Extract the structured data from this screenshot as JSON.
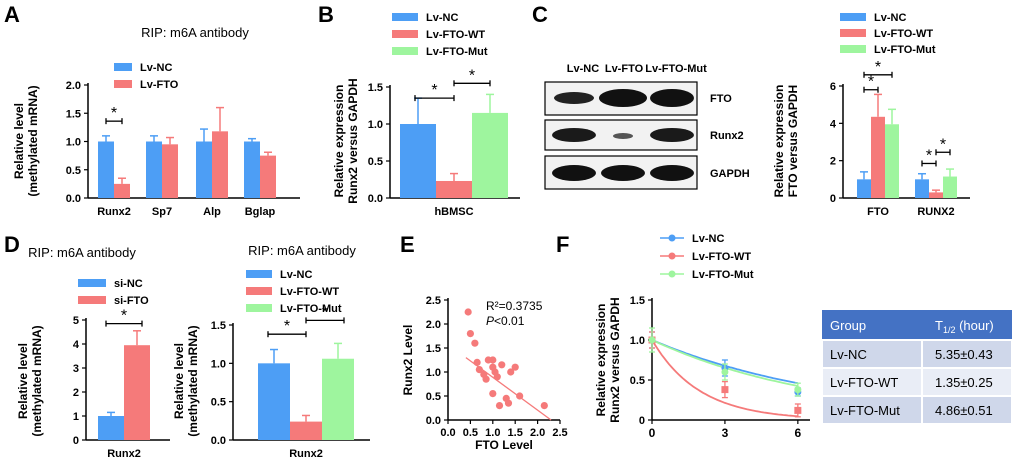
{
  "colors": {
    "blue": "#4d9ef5",
    "red": "#f57a7a",
    "green": "#9ef59e",
    "axis": "#000000",
    "band": "#1a1a1a",
    "table_header": "#4472c4",
    "table_row1": "#cfd7ea",
    "table_row2": "#e9edf6"
  },
  "panel_letters": {
    "a": "A",
    "b": "B",
    "c": "C",
    "d": "D",
    "e": "E",
    "f": "F"
  },
  "chart_data": [
    {
      "id": "A",
      "type": "bar",
      "title": "RIP: m6A antibody",
      "ylabel": "Relative level\n(methylated mRNA)",
      "ylim": [
        0,
        2.0
      ],
      "yticks": [
        0,
        0.5,
        1.0,
        1.5,
        2.0
      ],
      "ytick_labels": [
        "0.0",
        "0.5",
        "1.0",
        "1.5",
        "2.0"
      ],
      "categories": [
        "Runx2",
        "Sp7",
        "Alp",
        "Bglap"
      ],
      "series": [
        {
          "name": "Lv-NC",
          "color": "blue",
          "values": [
            1.0,
            1.0,
            1.0,
            1.0
          ],
          "errors": [
            0.1,
            0.1,
            0.22,
            0.05
          ]
        },
        {
          "name": "Lv-FTO",
          "color": "red",
          "values": [
            0.25,
            0.95,
            1.18,
            0.75
          ],
          "errors": [
            0.1,
            0.12,
            0.42,
            0.06
          ]
        }
      ],
      "annotations": [
        {
          "label": "*",
          "cat": 0
        }
      ]
    },
    {
      "id": "B",
      "type": "bar",
      "title": "",
      "ylabel": "Relative expression\nRunx2 versus GAPDH",
      "ylim": [
        0,
        1.5
      ],
      "yticks": [
        0,
        0.5,
        1.0,
        1.5
      ],
      "ytick_labels": [
        "0.0",
        "0.5",
        "1.0",
        "1.5"
      ],
      "categories": [
        "hBMSC"
      ],
      "series": [
        {
          "name": "Lv-NC",
          "color": "blue",
          "values": [
            1.0
          ],
          "errors": [
            0.35
          ]
        },
        {
          "name": "Lv-FTO-WT",
          "color": "red",
          "values": [
            0.23
          ],
          "errors": [
            0.1
          ]
        },
        {
          "name": "Lv-FTO-Mut",
          "color": "green",
          "values": [
            1.15
          ],
          "errors": [
            0.25
          ]
        }
      ],
      "annotations": [
        {
          "label": "*"
        },
        {
          "label": "*"
        }
      ]
    },
    {
      "id": "C",
      "type": "bar",
      "title": "",
      "ylabel": "Relative expression\nFTO versus GAPDH",
      "ylim": [
        0,
        6
      ],
      "yticks": [
        0,
        2,
        4,
        6
      ],
      "ytick_labels": [
        "0",
        "2",
        "4",
        "6"
      ],
      "categories": [
        "FTO",
        "RUNX2"
      ],
      "series": [
        {
          "name": "Lv-NC",
          "color": "blue",
          "values": [
            1.0,
            1.0
          ],
          "errors": [
            0.4,
            0.3
          ]
        },
        {
          "name": "Lv-FTO-WT",
          "color": "red",
          "values": [
            4.35,
            0.3
          ],
          "errors": [
            1.2,
            0.12
          ]
        },
        {
          "name": "Lv-FTO-Mut",
          "color": "green",
          "values": [
            3.95,
            1.15
          ],
          "errors": [
            0.8,
            0.4
          ]
        }
      ],
      "annotations": [
        {
          "label": "*"
        },
        {
          "label": "*"
        },
        {
          "label": "*"
        },
        {
          "label": "*"
        }
      ]
    },
    {
      "id": "D1",
      "type": "bar",
      "title": "RIP: m6A antibody",
      "ylabel": "Relative level\n(methylated mRNA)",
      "ylim": [
        0,
        5
      ],
      "yticks": [
        0,
        1,
        2,
        3,
        4,
        5
      ],
      "ytick_labels": [
        "0",
        "1",
        "2",
        "3",
        "4",
        "5"
      ],
      "categories": [
        "Runx2"
      ],
      "series": [
        {
          "name": "si-NC",
          "color": "blue",
          "values": [
            1.0
          ],
          "errors": [
            0.15
          ]
        },
        {
          "name": "si-FTO",
          "color": "red",
          "values": [
            3.95
          ],
          "errors": [
            0.6
          ]
        }
      ],
      "annotations": [
        {
          "label": "*"
        }
      ]
    },
    {
      "id": "D2",
      "type": "bar",
      "title": "RIP: m6A antibody",
      "ylabel": "Relative level\n(methylated mRNA)",
      "ylim": [
        0,
        1.5
      ],
      "yticks": [
        0,
        0.5,
        1.0,
        1.5
      ],
      "ytick_labels": [
        "0.0",
        "0.5",
        "1.0",
        "1.5"
      ],
      "categories": [
        "Runx2"
      ],
      "series": [
        {
          "name": "Lv-NC",
          "color": "blue",
          "values": [
            1.0
          ],
          "errors": [
            0.18
          ]
        },
        {
          "name": "Lv-FTO-WT",
          "color": "red",
          "values": [
            0.24
          ],
          "errors": [
            0.08
          ]
        },
        {
          "name": "Lv-FTO-Mut",
          "color": "green",
          "values": [
            1.06
          ],
          "errors": [
            0.2
          ]
        }
      ],
      "annotations": [
        {
          "label": "*"
        },
        {
          "label": "*"
        }
      ]
    },
    {
      "id": "E",
      "type": "scatter",
      "title": "",
      "xlabel": "FTO Level",
      "ylabel": "Runx2 Level",
      "xlim": [
        0,
        2.5
      ],
      "ylim": [
        0,
        2.5
      ],
      "xticks": [
        0,
        0.5,
        1.0,
        1.5,
        2.0,
        2.5
      ],
      "xtick_labels": [
        "0.0",
        "0.5",
        "1.0",
        "1.5",
        "2.0",
        "2.5"
      ],
      "yticks": [
        0,
        0.5,
        1.0,
        1.5,
        2.0,
        2.5
      ],
      "ytick_labels": [
        "0.0",
        "0.5",
        "1.0",
        "1.5",
        "2.0",
        "2.5"
      ],
      "points": [
        [
          0.45,
          2.25
        ],
        [
          0.5,
          1.8
        ],
        [
          0.6,
          1.6
        ],
        [
          0.65,
          1.2
        ],
        [
          0.7,
          1.05
        ],
        [
          0.8,
          0.95
        ],
        [
          0.85,
          0.85
        ],
        [
          0.9,
          1.25
        ],
        [
          1.0,
          1.1
        ],
        [
          1.0,
          0.55
        ],
        [
          1.05,
          1.0
        ],
        [
          1.1,
          0.9
        ],
        [
          1.15,
          0.3
        ],
        [
          1.2,
          1.15
        ],
        [
          1.3,
          0.45
        ],
        [
          1.35,
          0.35
        ],
        [
          1.4,
          1.0
        ],
        [
          1.5,
          1.1
        ],
        [
          1.6,
          0.5
        ],
        [
          1.0,
          1.25
        ],
        [
          2.15,
          0.3
        ]
      ],
      "fit": {
        "x": [
          0.4,
          2.3
        ],
        "y": [
          1.3,
          0.0
        ]
      },
      "annotations": {
        "r2": "R²=0.3735",
        "p_italic": "P",
        "p_rest": "<0.01"
      }
    },
    {
      "id": "F",
      "type": "line",
      "title": "",
      "ylabel": "Relative expression\nRunx2 versus GAPDH",
      "xlim": [
        0,
        6.5
      ],
      "ylim": [
        0,
        1.5
      ],
      "xticks": [
        0,
        3,
        6
      ],
      "xtick_labels": [
        "0",
        "3",
        "6"
      ],
      "yticks": [
        0,
        0.5,
        1.0,
        1.5
      ],
      "ytick_labels": [
        "0",
        "0.5",
        "1.0",
        "1.5"
      ],
      "series": [
        {
          "name": "Lv-NC",
          "color": "blue",
          "x": [
            0,
            3,
            6
          ],
          "y": [
            1.0,
            0.65,
            0.35
          ],
          "errors": [
            0.1,
            0.1,
            0.05
          ]
        },
        {
          "name": "Lv-FTO-WT",
          "color": "red",
          "x": [
            0,
            3,
            6
          ],
          "y": [
            1.0,
            0.38,
            0.12
          ],
          "errors": [
            0.1,
            0.1,
            0.08
          ]
        },
        {
          "name": "Lv-FTO-Mut",
          "color": "green",
          "x": [
            0,
            3,
            6
          ],
          "y": [
            1.0,
            0.6,
            0.38
          ],
          "errors": [
            0.15,
            0.1,
            0.08
          ]
        }
      ],
      "curves": [
        {
          "color": "blue",
          "k": 0.1296
        },
        {
          "color": "red",
          "k": 0.5134
        },
        {
          "color": "green",
          "k": 0.1426
        }
      ]
    }
  ],
  "western_blot": {
    "columns": [
      "Lv-NC",
      "Lv-FTO",
      "Lv-FTO-Mut"
    ],
    "rows": [
      "FTO",
      "Runx2",
      "GAPDH"
    ]
  },
  "half_life_table": {
    "header": [
      "Group",
      "T1/2 (hour)"
    ],
    "header_sub": {
      "t": "T",
      "sub": "1/2",
      "rest": " (hour)"
    },
    "rows": [
      [
        "Lv-NC",
        "5.35±0.43"
      ],
      [
        "Lv-FTO-WT",
        "1.35±0.25"
      ],
      [
        "Lv-FTO-Mut",
        "4.86±0.51"
      ]
    ]
  }
}
